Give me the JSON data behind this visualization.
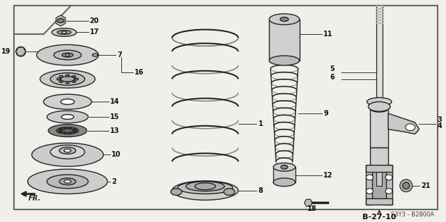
{
  "bg_color": "#f0efea",
  "border_color": "#444444",
  "line_color": "#222222",
  "page_ref": "B-27-10",
  "catalog_ref": "S3Y3 - B2800A",
  "fr_label": "FR."
}
